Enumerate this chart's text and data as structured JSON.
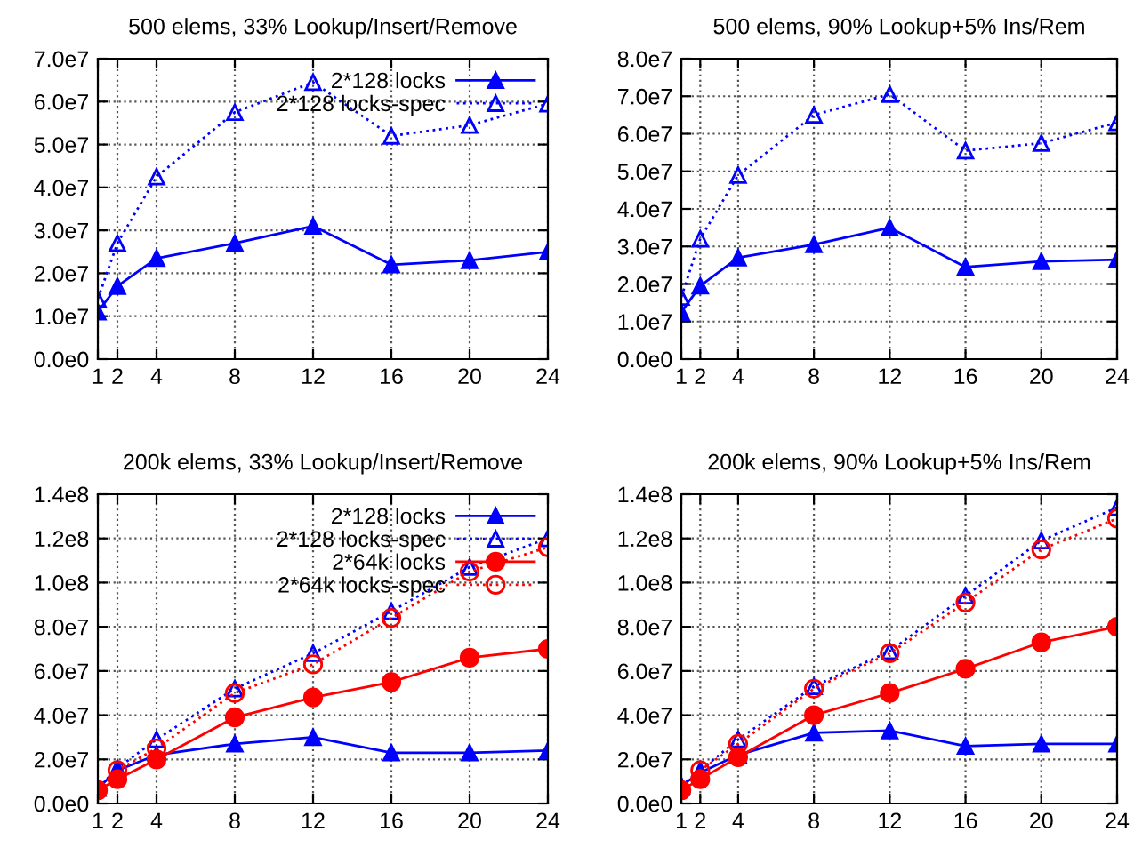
{
  "chart_data": [
    {
      "type": "line",
      "title": "500 elems, 33% Lookup/Insert/Remove",
      "x": [
        1,
        2,
        4,
        8,
        12,
        16,
        20,
        24
      ],
      "xlim": [
        1,
        24
      ],
      "xticks": [
        1,
        2,
        4,
        8,
        12,
        16,
        20,
        24
      ],
      "ylim": [
        0,
        70000000
      ],
      "yticks": [
        {
          "value": 0,
          "label": "0.0e0"
        },
        {
          "value": 10000000,
          "label": "1.0e7"
        },
        {
          "value": 20000000,
          "label": "2.0e7"
        },
        {
          "value": 30000000,
          "label": "3.0e7"
        },
        {
          "value": 40000000,
          "label": "4.0e7"
        },
        {
          "value": 50000000,
          "label": "5.0e7"
        },
        {
          "value": 60000000,
          "label": "6.0e7"
        },
        {
          "value": 70000000,
          "label": "7.0e7"
        }
      ],
      "grid": true,
      "legend": "top right",
      "series": [
        {
          "name": "2*128 locks",
          "color": "#0000ff",
          "marker": "triangle",
          "line_style": "solid",
          "values": [
            11000000,
            17000000,
            23500000,
            27000000,
            31000000,
            22000000,
            23000000,
            25000000
          ]
        },
        {
          "name": "2*128 locks-spec",
          "color": "#0000ff",
          "marker": "triangle",
          "line_style": "dotted",
          "values": [
            14000000,
            27000000,
            42500000,
            57500000,
            64500000,
            52000000,
            54500000,
            59500000
          ]
        }
      ]
    },
    {
      "type": "line",
      "title": "500 elems, 90% Lookup+5% Ins/Rem",
      "x": [
        1,
        2,
        4,
        8,
        12,
        16,
        20,
        24
      ],
      "xlim": [
        1,
        24
      ],
      "xticks": [
        1,
        2,
        4,
        8,
        12,
        16,
        20,
        24
      ],
      "ylim": [
        0,
        80000000
      ],
      "yticks": [
        {
          "value": 0,
          "label": "0.0e0"
        },
        {
          "value": 10000000,
          "label": "1.0e7"
        },
        {
          "value": 20000000,
          "label": "2.0e7"
        },
        {
          "value": 30000000,
          "label": "3.0e7"
        },
        {
          "value": 40000000,
          "label": "4.0e7"
        },
        {
          "value": 50000000,
          "label": "5.0e7"
        },
        {
          "value": 60000000,
          "label": "6.0e7"
        },
        {
          "value": 70000000,
          "label": "7.0e7"
        },
        {
          "value": 80000000,
          "label": "8.0e7"
        }
      ],
      "grid": true,
      "series": [
        {
          "color": "#0000ff",
          "marker": "triangle",
          "line_style": "solid",
          "values": [
            12500000,
            19500000,
            27000000,
            30500000,
            35000000,
            24500000,
            26000000,
            26500000
          ]
        },
        {
          "color": "#0000ff",
          "marker": "triangle",
          "line_style": "dotted",
          "values": [
            16500000,
            32000000,
            49000000,
            65000000,
            70500000,
            55500000,
            57500000,
            63000000
          ]
        }
      ]
    },
    {
      "type": "line",
      "title": "200k elems, 33% Lookup/Insert/Remove",
      "x": [
        1,
        2,
        4,
        8,
        12,
        16,
        20,
        24
      ],
      "xlim": [
        1,
        24
      ],
      "xticks": [
        1,
        2,
        4,
        8,
        12,
        16,
        20,
        24
      ],
      "ylim": [
        0,
        140000000
      ],
      "yticks": [
        {
          "value": 0,
          "label": "0.0e0"
        },
        {
          "value": 20000000,
          "label": "2.0e7"
        },
        {
          "value": 40000000,
          "label": "4.0e7"
        },
        {
          "value": 60000000,
          "label": "6.0e7"
        },
        {
          "value": 80000000,
          "label": "8.0e7"
        },
        {
          "value": 100000000,
          "label": "1.0e8"
        },
        {
          "value": 120000000,
          "label": "1.2e8"
        },
        {
          "value": 140000000,
          "label": "1.4e8"
        }
      ],
      "grid": true,
      "legend": "top right",
      "series": [
        {
          "name": "2*128 locks",
          "color": "#0000ff",
          "marker": "triangle",
          "line_style": "solid",
          "values": [
            7000000,
            15000000,
            22000000,
            27000000,
            30000000,
            23000000,
            23000000,
            24000000
          ]
        },
        {
          "name": "2*128 locks-spec",
          "color": "#0000ff",
          "marker": "triangle",
          "line_style": "dotted",
          "values": [
            7000000,
            16000000,
            29000000,
            52000000,
            68000000,
            87000000,
            107000000,
            120000000
          ]
        },
        {
          "name": "2*64k locks",
          "color": "#ff0000",
          "marker": "circle",
          "line_style": "solid",
          "values": [
            6000000,
            11000000,
            20000000,
            39000000,
            48000000,
            55000000,
            66000000,
            70000000
          ]
        },
        {
          "name": "2*64k locks-spec",
          "color": "#ff0000",
          "marker": "circle",
          "line_style": "dotted",
          "values": [
            6000000,
            15000000,
            25000000,
            50000000,
            63000000,
            84000000,
            105000000,
            116000000
          ]
        }
      ]
    },
    {
      "type": "line",
      "title": "200k elems, 90% Lookup+5% Ins/Rem",
      "x": [
        1,
        2,
        4,
        8,
        12,
        16,
        20,
        24
      ],
      "xlim": [
        1,
        24
      ],
      "xticks": [
        1,
        2,
        4,
        8,
        12,
        16,
        20,
        24
      ],
      "ylim": [
        0,
        140000000
      ],
      "yticks": [
        {
          "value": 0,
          "label": "0.0e0"
        },
        {
          "value": 20000000,
          "label": "2.0e7"
        },
        {
          "value": 40000000,
          "label": "4.0e7"
        },
        {
          "value": 60000000,
          "label": "6.0e7"
        },
        {
          "value": 80000000,
          "label": "8.0e7"
        },
        {
          "value": 100000000,
          "label": "1.0e8"
        },
        {
          "value": 120000000,
          "label": "1.2e8"
        },
        {
          "value": 140000000,
          "label": "1.4e8"
        }
      ],
      "grid": true,
      "series": [
        {
          "color": "#0000ff",
          "marker": "triangle",
          "line_style": "solid",
          "values": [
            8000000,
            14000000,
            22000000,
            32000000,
            33000000,
            26000000,
            27000000,
            27000000
          ]
        },
        {
          "color": "#0000ff",
          "marker": "triangle",
          "line_style": "dotted",
          "values": [
            8000000,
            15000000,
            29000000,
            53000000,
            69000000,
            94000000,
            119000000,
            134000000
          ]
        },
        {
          "color": "#ff0000",
          "marker": "circle",
          "line_style": "solid",
          "values": [
            6000000,
            11000000,
            21000000,
            40000000,
            50000000,
            61000000,
            73000000,
            80000000
          ]
        },
        {
          "color": "#ff0000",
          "marker": "circle",
          "line_style": "dotted",
          "values": [
            6000000,
            15000000,
            27000000,
            52000000,
            68000000,
            91000000,
            115000000,
            129000000
          ]
        }
      ]
    }
  ]
}
